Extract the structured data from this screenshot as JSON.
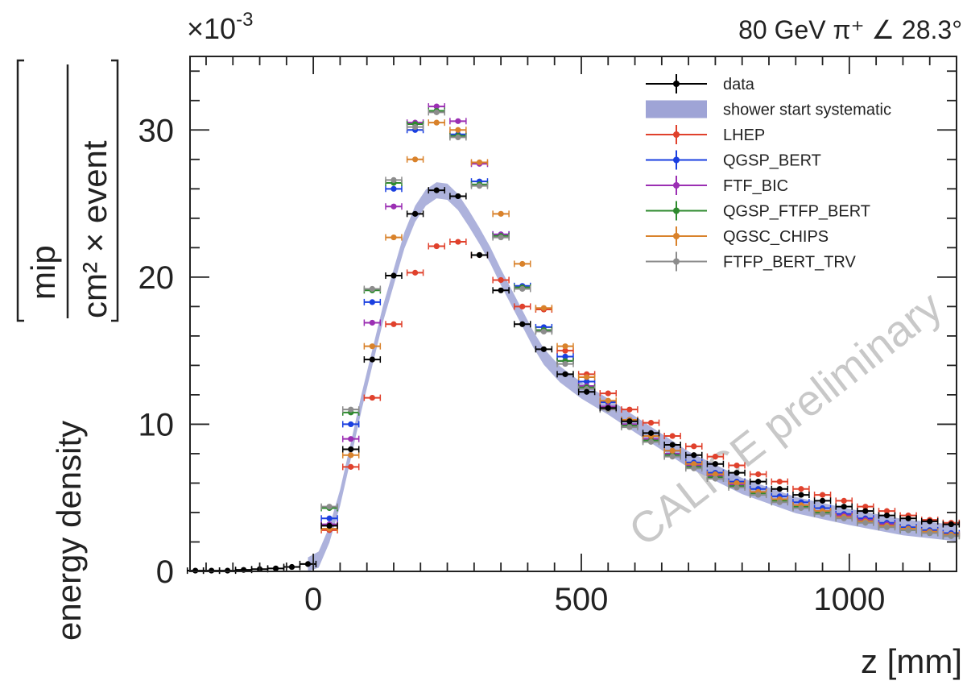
{
  "chart_data": {
    "type": "scatter",
    "header": "80 GeV π⁺ ∠ 28.3°",
    "scale_prefix": "×10",
    "scale_exponent": "-3",
    "xlabel": "z [mm]",
    "ylabel_prefix": "energy density",
    "ylabel_numerator": "mip",
    "ylabel_denominator": "cm² × event",
    "watermark": "CALICE preliminary",
    "xlim": [
      -230,
      1200
    ],
    "ylim": [
      0,
      35
    ],
    "x_ticks": [
      0,
      500,
      1000
    ],
    "y_ticks": [
      0,
      10,
      20,
      30
    ],
    "legend_position": "top-right",
    "band": {
      "name": "shower start systematic",
      "color": "#9fa4d6",
      "x": [
        -10,
        10,
        30,
        50,
        70,
        90,
        110,
        130,
        150,
        170,
        190,
        210,
        230,
        250,
        270,
        290,
        310,
        330,
        350,
        370,
        390,
        410,
        430,
        460,
        500,
        550,
        600,
        700,
        800,
        900,
        1000,
        1100,
        1200
      ],
      "y": [
        0.4,
        0.8,
        2.5,
        5,
        8.2,
        11.5,
        14.5,
        17.5,
        20,
        22.5,
        24.3,
        25.4,
        25.9,
        25.8,
        25.1,
        24,
        22.8,
        21.5,
        20,
        18.6,
        17.2,
        15.8,
        14.6,
        13.4,
        12.3,
        11.2,
        10,
        7.6,
        5.8,
        4.5,
        3.7,
        3,
        2.6
      ]
    },
    "series": [
      {
        "name": "data",
        "color": "#000000",
        "x": [
          -220,
          -190,
          -160,
          -130,
          -100,
          -70,
          -40,
          -10,
          30,
          70,
          110,
          150,
          190,
          230,
          270,
          310,
          350,
          390,
          430,
          470,
          510,
          550,
          590,
          630,
          670,
          710,
          750,
          790,
          830,
          870,
          910,
          950,
          990,
          1030,
          1070,
          1110,
          1150,
          1190
        ],
        "y": [
          0.05,
          0.05,
          0.05,
          0.1,
          0.15,
          0.2,
          0.3,
          0.5,
          3.1,
          8.3,
          14.4,
          20.1,
          24.3,
          25.9,
          25.5,
          21.5,
          19.1,
          16.8,
          15.1,
          13.4,
          12.2,
          11.1,
          10.2,
          9.4,
          8.6,
          7.9,
          7.3,
          6.7,
          6.1,
          5.6,
          5.2,
          4.8,
          4.4,
          4.1,
          3.8,
          3.6,
          3.4,
          3.2
        ]
      },
      {
        "name": "LHEP",
        "color": "#e0412c",
        "x": [
          30,
          70,
          110,
          150,
          190,
          230,
          270,
          310,
          350,
          390,
          430,
          470,
          510,
          550,
          590,
          630,
          670,
          710,
          750,
          790,
          830,
          870,
          910,
          950,
          990,
          1030,
          1070,
          1110,
          1150,
          1190
        ],
        "y": [
          2.8,
          7.1,
          11.8,
          16.8,
          20.3,
          22.1,
          22.4,
          21.5,
          19.8,
          18.0,
          17.8,
          15.0,
          13.4,
          12.1,
          11.0,
          10.1,
          9.2,
          8.5,
          7.8,
          7.2,
          6.6,
          6.1,
          5.6,
          5.2,
          4.8,
          4.4,
          4.1,
          3.8,
          3.5,
          3.3
        ]
      },
      {
        "name": "QGSP_BERT",
        "color": "#1a3fe0",
        "x": [
          30,
          70,
          110,
          150,
          190,
          230,
          270,
          310,
          350,
          390,
          430,
          470,
          510,
          550,
          590,
          630,
          670,
          710,
          750,
          790,
          830,
          870,
          910,
          950,
          990,
          1030,
          1070,
          1110,
          1150,
          1190
        ],
        "y": [
          3.6,
          10.0,
          18.3,
          26.0,
          30.0,
          31.3,
          29.7,
          26.5,
          22.9,
          19.4,
          16.6,
          14.6,
          12.9,
          11.5,
          10.3,
          9.2,
          8.2,
          7.4,
          6.7,
          6.1,
          5.6,
          5.1,
          4.7,
          4.3,
          3.9,
          3.6,
          3.3,
          3.0,
          2.8,
          2.6
        ]
      },
      {
        "name": "FTF_BIC",
        "color": "#9b2fb3",
        "x": [
          30,
          70,
          110,
          150,
          190,
          230,
          270,
          310,
          350,
          390,
          430,
          470,
          510,
          550,
          590,
          630,
          670,
          710,
          750,
          790,
          830,
          870,
          910,
          950,
          990,
          1030,
          1070,
          1110,
          1150,
          1190
        ],
        "y": [
          3.2,
          9.0,
          16.9,
          24.8,
          30.5,
          31.6,
          30.6,
          27.7,
          22.9,
          19.3,
          16.4,
          14.3,
          12.6,
          11.2,
          10.0,
          9.0,
          8.0,
          7.2,
          6.5,
          5.9,
          5.4,
          4.9,
          4.5,
          4.1,
          3.8,
          3.5,
          3.2,
          2.9,
          2.7,
          2.5
        ]
      },
      {
        "name": "QGSP_FTFP_BERT",
        "color": "#2e8a2e",
        "x": [
          30,
          70,
          110,
          150,
          190,
          230,
          270,
          310,
          350,
          390,
          430,
          470,
          510,
          550,
          590,
          630,
          670,
          710,
          750,
          790,
          830,
          870,
          910,
          950,
          990,
          1030,
          1070,
          1110,
          1150,
          1190
        ],
        "y": [
          4.3,
          10.8,
          19.1,
          26.4,
          30.4,
          31.3,
          29.6,
          26.3,
          22.8,
          19.3,
          16.4,
          14.3,
          12.5,
          11.1,
          9.9,
          8.9,
          7.9,
          7.1,
          6.4,
          5.8,
          5.3,
          4.8,
          4.4,
          4.0,
          3.7,
          3.4,
          3.1,
          2.8,
          2.6,
          2.4
        ]
      },
      {
        "name": "QGSC_CHIPS",
        "color": "#d9822b",
        "x": [
          30,
          70,
          110,
          150,
          190,
          230,
          270,
          310,
          350,
          390,
          430,
          470,
          510,
          550,
          590,
          630,
          670,
          710,
          750,
          790,
          830,
          870,
          910,
          950,
          990,
          1030,
          1070,
          1110,
          1150,
          1190
        ],
        "y": [
          2.9,
          7.9,
          15.3,
          22.7,
          28.0,
          30.5,
          30.0,
          27.8,
          24.3,
          20.9,
          17.9,
          15.3,
          13.2,
          11.6,
          10.3,
          9.2,
          8.2,
          7.3,
          6.6,
          6.0,
          5.4,
          4.9,
          4.5,
          4.1,
          3.7,
          3.4,
          3.1,
          2.9,
          2.7,
          2.5
        ]
      },
      {
        "name": "FTFP_BERT_TRV",
        "color": "#8c8c8c",
        "x": [
          30,
          70,
          110,
          150,
          190,
          230,
          270,
          310,
          350,
          390,
          430,
          470,
          510,
          550,
          590,
          630,
          670,
          710,
          750,
          790,
          830,
          870,
          910,
          950,
          990,
          1030,
          1070,
          1110,
          1150,
          1190
        ],
        "y": [
          4.4,
          11.0,
          19.2,
          26.6,
          30.2,
          31.2,
          29.5,
          26.2,
          22.7,
          19.2,
          16.3,
          14.1,
          12.4,
          11.0,
          9.8,
          8.8,
          7.8,
          7.0,
          6.3,
          5.7,
          5.2,
          4.7,
          4.3,
          3.9,
          3.6,
          3.3,
          3.0,
          2.8,
          2.6,
          2.4
        ]
      }
    ]
  }
}
